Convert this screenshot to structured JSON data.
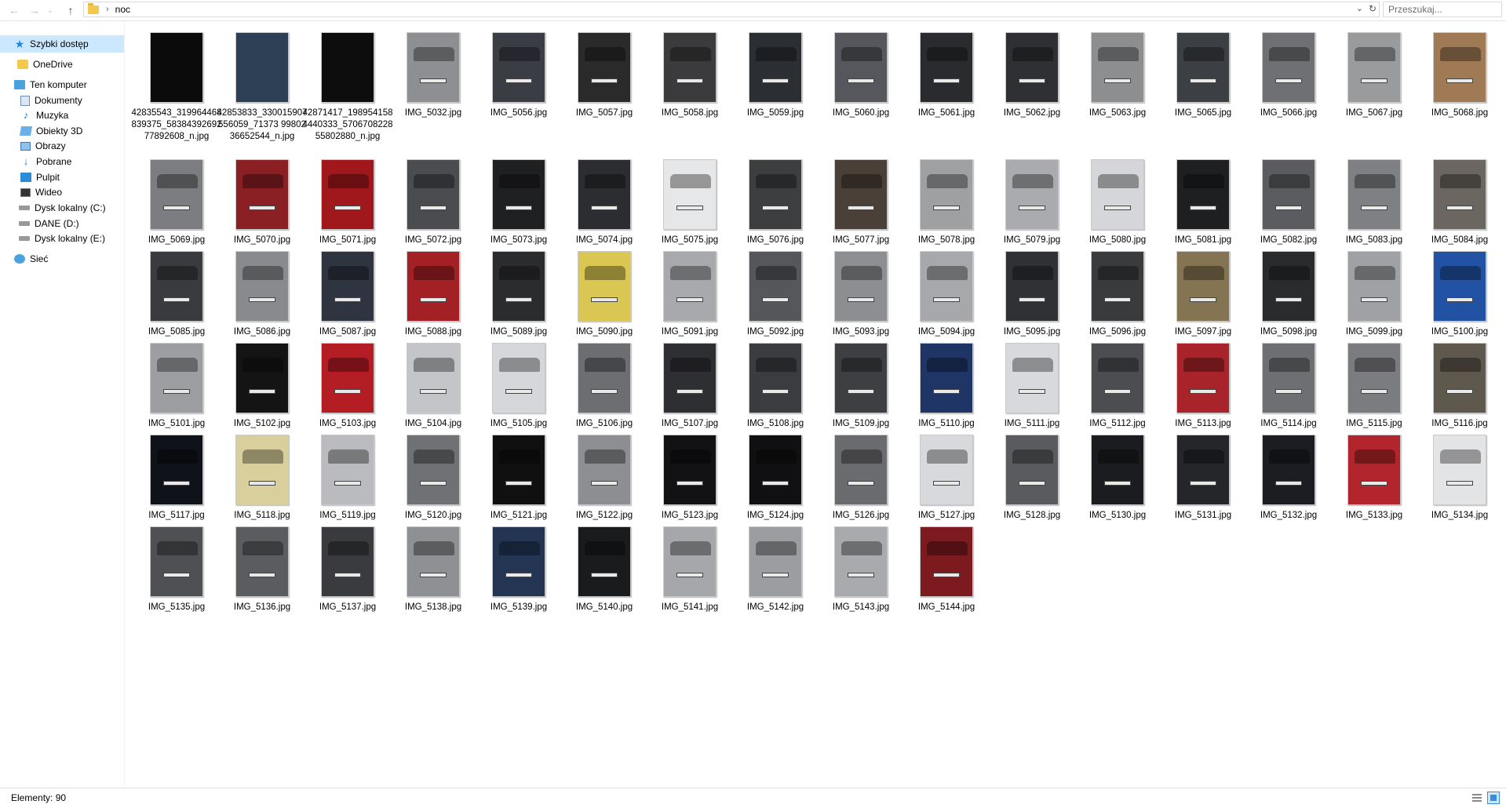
{
  "toolbar": {
    "back_icon": "arrow-left-icon",
    "forward_icon": "arrow-right-icon",
    "recent_icon": "chevron-down-icon",
    "up_icon": "arrow-up-icon",
    "breadcrumb_separator": "›",
    "path": "noc",
    "search_placeholder": "Przeszukaj..."
  },
  "sidebar": {
    "items": [
      {
        "label": "Szybki dostęp",
        "icon": "star-icon",
        "selected": true
      },
      {
        "label": "OneDrive",
        "icon": "onedrive-folder-icon"
      },
      {
        "label": "Ten komputer",
        "icon": "computer-icon"
      },
      {
        "label": "Dokumenty",
        "icon": "documents-icon"
      },
      {
        "label": "Muzyka",
        "icon": "music-icon"
      },
      {
        "label": "Obiekty 3D",
        "icon": "3d-objects-icon"
      },
      {
        "label": "Obrazy",
        "icon": "pictures-icon"
      },
      {
        "label": "Pobrane",
        "icon": "downloads-icon"
      },
      {
        "label": "Pulpit",
        "icon": "desktop-icon"
      },
      {
        "label": "Wideo",
        "icon": "video-icon"
      },
      {
        "label": "Dysk lokalny (C:)",
        "icon": "drive-icon"
      },
      {
        "label": "DANE (D:)",
        "icon": "drive-icon"
      },
      {
        "label": "Dysk lokalny (E:)",
        "icon": "drive-icon"
      },
      {
        "label": "Sieć",
        "icon": "network-icon"
      }
    ]
  },
  "files": [
    "42835543_319964468839375_5838439269277892608_n.jpg",
    "42853833_330015907556059_71373 9980236652544_n.jpg",
    "42871417_1989541584440333_570670822855802880_n.jpg",
    "IMG_5032.jpg",
    "IMG_5056.jpg",
    "IMG_5057.jpg",
    "IMG_5058.jpg",
    "IMG_5059.jpg",
    "IMG_5060.jpg",
    "IMG_5061.jpg",
    "IMG_5062.jpg",
    "IMG_5063.jpg",
    "IMG_5065.jpg",
    "IMG_5066.jpg",
    "IMG_5067.jpg",
    "IMG_5068.jpg",
    "IMG_5069.jpg",
    "IMG_5070.jpg",
    "IMG_5071.jpg",
    "IMG_5072.jpg",
    "IMG_5073.jpg",
    "IMG_5074.jpg",
    "IMG_5075.jpg",
    "IMG_5076.jpg",
    "IMG_5077.jpg",
    "IMG_5078.jpg",
    "IMG_5079.jpg",
    "IMG_5080.jpg",
    "IMG_5081.jpg",
    "IMG_5082.jpg",
    "IMG_5083.jpg",
    "IMG_5084.jpg",
    "IMG_5085.jpg",
    "IMG_5086.jpg",
    "IMG_5087.jpg",
    "IMG_5088.jpg",
    "IMG_5089.jpg",
    "IMG_5090.jpg",
    "IMG_5091.jpg",
    "IMG_5092.jpg",
    "IMG_5093.jpg",
    "IMG_5094.jpg",
    "IMG_5095.jpg",
    "IMG_5096.jpg",
    "IMG_5097.jpg",
    "IMG_5098.jpg",
    "IMG_5099.jpg",
    "IMG_5100.jpg",
    "IMG_5101.jpg",
    "IMG_5102.jpg",
    "IMG_5103.jpg",
    "IMG_5104.jpg",
    "IMG_5105.jpg",
    "IMG_5106.jpg",
    "IMG_5107.jpg",
    "IMG_5108.jpg",
    "IMG_5109.jpg",
    "IMG_5110.jpg",
    "IMG_5111.jpg",
    "IMG_5112.jpg",
    "IMG_5113.jpg",
    "IMG_5114.jpg",
    "IMG_5115.jpg",
    "IMG_5116.jpg",
    "IMG_5117.jpg",
    "IMG_5118.jpg",
    "IMG_5119.jpg",
    "IMG_5120.jpg",
    "IMG_5121.jpg",
    "IMG_5122.jpg",
    "IMG_5123.jpg",
    "IMG_5124.jpg",
    "IMG_5126.jpg",
    "IMG_5127.jpg",
    "IMG_5128.jpg",
    "IMG_5130.jpg",
    "IMG_5131.jpg",
    "IMG_5132.jpg",
    "IMG_5133.jpg",
    "IMG_5134.jpg",
    "IMG_5135.jpg",
    "IMG_5136.jpg",
    "IMG_5137.jpg",
    "IMG_5138.jpg",
    "IMG_5139.jpg",
    "IMG_5140.jpg",
    "IMG_5141.jpg",
    "IMG_5142.jpg",
    "IMG_5143.jpg",
    "IMG_5144.jpg"
  ],
  "thumb_colors": [
    "#0b0b0b",
    "#2c3f55",
    "#0d0d0d",
    "#8d8f92",
    "#3a3d44",
    "#2a2a2a",
    "#3b3b3d",
    "#2b2e33",
    "#55575c",
    "#2a2b2f",
    "#2f3033",
    "#8c8e90",
    "#3c3f44",
    "#6f7073",
    "#9a9b9d",
    "#a07a55",
    "#7c7d80",
    "#8a1f24",
    "#a1181c",
    "#4a4c50",
    "#1f2022",
    "#2c2d30",
    "#e6e7e9",
    "#3d3e40",
    "#4a4038",
    "#9ea0a2",
    "#a9abae",
    "#d4d6d9",
    "#1e1f21",
    "#5b5c5f",
    "#7f8083",
    "#6b665f",
    "#3a3b3e",
    "#888a8d",
    "#2e3440",
    "#a32025",
    "#2b2c2e",
    "#d9c653",
    "#a7a9ac",
    "#55575b",
    "#8c8e91",
    "#a6a8ab",
    "#2f3135",
    "#3a3b3d",
    "#857452",
    "#2a2b2d",
    "#9fa1a4",
    "#2152a3",
    "#9c9ea1",
    "#141415",
    "#b51d24",
    "#c3c5c8",
    "#d5d7da",
    "#6c6e72",
    "#2e2f32",
    "#3b3c3f",
    "#3e3f42",
    "#1f3566",
    "#d8d9dc",
    "#4b4d50",
    "#a8242a",
    "#6d6f72",
    "#7b7c7f",
    "#5f584d",
    "#0f1218",
    "#d9cf9c",
    "#b9bbbe",
    "#6f7174",
    "#101010",
    "#8c8e91",
    "#121214",
    "#101012",
    "#6a6b6e",
    "#d8d9dc",
    "#5a5b5e",
    "#1a1c20",
    "#24262a",
    "#1b1d22",
    "#b3252c",
    "#e3e4e6",
    "#4e5054",
    "#5a5c60",
    "#3a3b3e",
    "#8e9093",
    "#233552",
    "#1a1b1d",
    "#a5a7aa",
    "#9b9da0",
    "#a8aaad",
    "#7c1a1f"
  ],
  "status": {
    "item_count": "Elementy: 90"
  },
  "view_buttons": {
    "details_icon": "details-view-icon",
    "tiles_icon": "large-icons-view-icon"
  }
}
